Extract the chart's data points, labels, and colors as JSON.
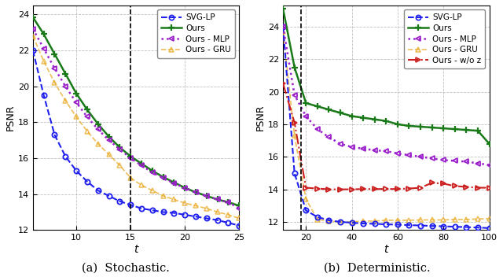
{
  "stochastic": {
    "x": [
      6,
      7,
      8,
      9,
      10,
      11,
      12,
      13,
      14,
      15,
      16,
      17,
      18,
      19,
      20,
      21,
      22,
      23,
      24,
      25
    ],
    "svg_lp": [
      22.0,
      19.5,
      17.3,
      16.1,
      15.3,
      14.7,
      14.2,
      13.9,
      13.6,
      13.4,
      13.2,
      13.1,
      13.0,
      12.95,
      12.85,
      12.75,
      12.65,
      12.55,
      12.4,
      12.25
    ],
    "ours": [
      23.85,
      22.9,
      21.8,
      20.7,
      19.6,
      18.7,
      17.9,
      17.2,
      16.6,
      16.1,
      15.7,
      15.3,
      14.95,
      14.65,
      14.35,
      14.1,
      13.9,
      13.7,
      13.55,
      13.35
    ],
    "ours_mlp": [
      23.2,
      22.1,
      21.0,
      20.0,
      19.1,
      18.3,
      17.6,
      17.0,
      16.5,
      16.0,
      15.6,
      15.2,
      14.9,
      14.6,
      14.35,
      14.1,
      13.9,
      13.7,
      13.55,
      13.2
    ],
    "ours_gru": [
      22.8,
      21.4,
      20.2,
      19.2,
      18.3,
      17.5,
      16.8,
      16.2,
      15.6,
      14.9,
      14.5,
      14.2,
      13.9,
      13.7,
      13.5,
      13.35,
      13.2,
      13.0,
      12.85,
      12.65
    ],
    "vline": 15,
    "xlim": [
      6,
      25
    ],
    "ylim": [
      12,
      24.5
    ],
    "yticks": [
      12,
      14,
      16,
      18,
      20,
      22,
      24
    ],
    "xticks": [
      10,
      15,
      20,
      25
    ],
    "xlabel": "t",
    "ylabel": "PSNR",
    "caption": "(a)  Stochastic."
  },
  "deterministic": {
    "x": [
      10,
      15,
      20,
      25,
      30,
      35,
      40,
      45,
      50,
      55,
      60,
      65,
      70,
      75,
      80,
      85,
      90,
      95,
      100
    ],
    "svg_lp": [
      24.0,
      15.0,
      12.7,
      12.3,
      12.1,
      12.0,
      11.95,
      11.9,
      11.88,
      11.85,
      11.83,
      11.8,
      11.78,
      11.75,
      11.73,
      11.7,
      11.68,
      11.65,
      11.62
    ],
    "ours": [
      25.1,
      21.5,
      19.3,
      19.1,
      18.9,
      18.7,
      18.5,
      18.4,
      18.3,
      18.2,
      18.0,
      17.9,
      17.85,
      17.8,
      17.75,
      17.7,
      17.65,
      17.6,
      16.8
    ],
    "ours_mlp": [
      24.0,
      19.8,
      18.5,
      17.7,
      17.2,
      16.8,
      16.6,
      16.5,
      16.4,
      16.35,
      16.2,
      16.1,
      16.0,
      15.9,
      15.8,
      15.75,
      15.7,
      15.6,
      15.5
    ],
    "ours_gru": [
      23.7,
      17.3,
      13.4,
      12.15,
      12.05,
      12.0,
      12.0,
      12.05,
      12.05,
      12.1,
      12.1,
      12.1,
      12.12,
      12.12,
      12.12,
      12.15,
      12.15,
      12.18,
      12.2
    ],
    "ours_woz": [
      20.5,
      18.1,
      14.1,
      14.05,
      14.0,
      14.0,
      14.0,
      14.02,
      14.02,
      14.02,
      14.02,
      14.05,
      14.1,
      14.4,
      14.35,
      14.2,
      14.15,
      14.1,
      14.1
    ],
    "vline": 18,
    "xlim": [
      10,
      100
    ],
    "ylim": [
      11.5,
      25.3
    ],
    "yticks": [
      12,
      14,
      16,
      18,
      20,
      22,
      24
    ],
    "xticks": [
      20,
      40,
      60,
      80,
      100
    ],
    "xlabel": "t",
    "ylabel": "PSNR",
    "caption": "(b)  Deterministic."
  },
  "colors": {
    "svg_lp": "#2020ee",
    "ours": "#1a7a1a",
    "ours_mlp": "#9b20cc",
    "ours_gru": "#e8a820",
    "ours_woz": "#cc2020"
  },
  "legend_stochastic": [
    "SVG-LP",
    "Ours",
    "Ours - MLP",
    "Ours - GRU"
  ],
  "legend_deterministic": [
    "SVG-LP",
    "Ours",
    "Ours - MLP",
    "Ours - GRU",
    "Ours - w/o z"
  ]
}
